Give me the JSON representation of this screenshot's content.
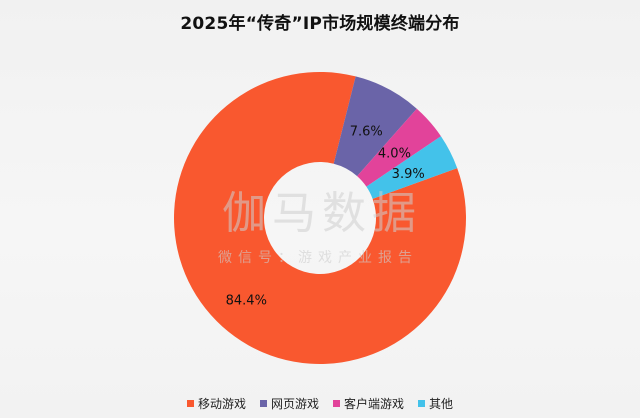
{
  "chart_data": {
    "type": "pie",
    "title": "2025年“传奇”IP市场规模终端分布",
    "donut": true,
    "legend_position": "bottom",
    "slices": [
      {
        "name": "移动游戏",
        "value": 84.4,
        "label": "84.4%",
        "color": "#f9582f"
      },
      {
        "name": "网页游戏",
        "value": 7.6,
        "label": "7.6%",
        "color": "#6a64a8"
      },
      {
        "name": "客户端游戏",
        "value": 4.0,
        "label": "4.0%",
        "color": "#e2439a"
      },
      {
        "name": "其他",
        "value": 3.9,
        "label": "3.9%",
        "color": "#43c2ea"
      }
    ]
  },
  "watermark": {
    "main": "伽马数据",
    "sub": "微信号：游戏产业报告"
  }
}
